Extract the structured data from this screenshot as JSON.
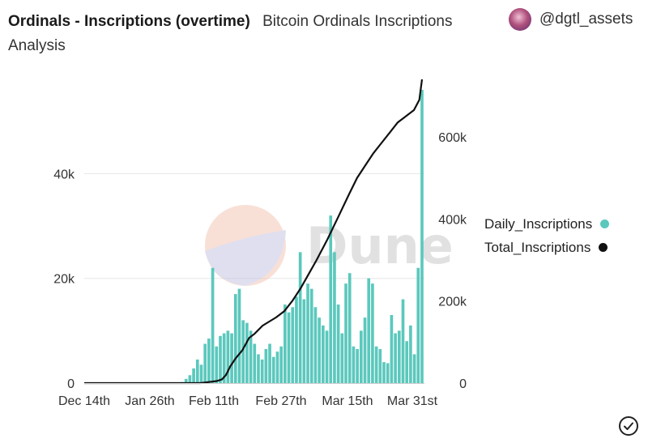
{
  "header": {
    "title": "Ordinals - Inscriptions (overtime)",
    "subtitle": "Bitcoin Ordinals Inscriptions Analysis",
    "author": "@dgtl_assets"
  },
  "watermark": "Dune",
  "icons": {
    "avatar": "avatar-image",
    "verified": "check-circle-icon"
  },
  "colors": {
    "daily": "#5bc8bd",
    "total": "#111111",
    "grid": "#e6e6e6"
  },
  "chart_data": {
    "type": "bar",
    "xticks": [
      "Dec 14th",
      "Jan 26th",
      "Feb 11th",
      "Feb 27th",
      "Mar 15th",
      "Mar 31st"
    ],
    "yleft_ticks": [
      "0",
      "20k",
      "40k"
    ],
    "yright_ticks": [
      "0",
      "200k",
      "400k",
      "600k"
    ],
    "ylim_left": [
      0,
      58000
    ],
    "ylim_right": [
      0,
      740000
    ],
    "legend_position": "right",
    "series": [
      {
        "name": "Daily_Inscriptions",
        "type": "bar",
        "axis": "left",
        "values": [
          200,
          800,
          1500,
          2800,
          4500,
          3500,
          7500,
          8500,
          22000,
          7000,
          9000,
          9500,
          10000,
          9500,
          17000,
          18000,
          12000,
          11500,
          10000,
          7500,
          5500,
          4500,
          6500,
          7500,
          5000,
          6000,
          7000,
          15000,
          13500,
          14500,
          16500,
          25000,
          16000,
          19000,
          18000,
          14500,
          12500,
          11000,
          10000,
          32000,
          25000,
          15000,
          9500,
          19000,
          21000,
          7000,
          6500,
          10000,
          12500,
          20000,
          19000,
          7000,
          6500,
          4000,
          3800,
          13000,
          9500,
          10000,
          16000,
          8000,
          11000,
          5500,
          22000,
          56000
        ]
      },
      {
        "name": "Total_Inscriptions",
        "type": "line",
        "axis": "right",
        "points": [
          [
            0,
            0
          ],
          [
            43,
            0
          ],
          [
            49,
            5000
          ],
          [
            51,
            9000
          ],
          [
            52.5,
            20000
          ],
          [
            54,
            40000
          ],
          [
            56,
            60000
          ],
          [
            58.5,
            80000
          ],
          [
            61,
            110000
          ],
          [
            63,
            120000
          ],
          [
            66,
            140000
          ],
          [
            68.5,
            150000
          ],
          [
            71,
            160000
          ],
          [
            74,
            175000
          ],
          [
            77,
            200000
          ],
          [
            80,
            230000
          ],
          [
            83,
            265000
          ],
          [
            86,
            300000
          ],
          [
            90,
            350000
          ],
          [
            94,
            405000
          ],
          [
            98,
            460000
          ],
          [
            101,
            500000
          ],
          [
            104,
            530000
          ],
          [
            107,
            560000
          ],
          [
            110,
            585000
          ],
          [
            113,
            610000
          ],
          [
            116,
            635000
          ],
          [
            119,
            650000
          ],
          [
            122,
            665000
          ],
          [
            124,
            690000
          ],
          [
            125,
            740000
          ]
        ]
      }
    ]
  }
}
